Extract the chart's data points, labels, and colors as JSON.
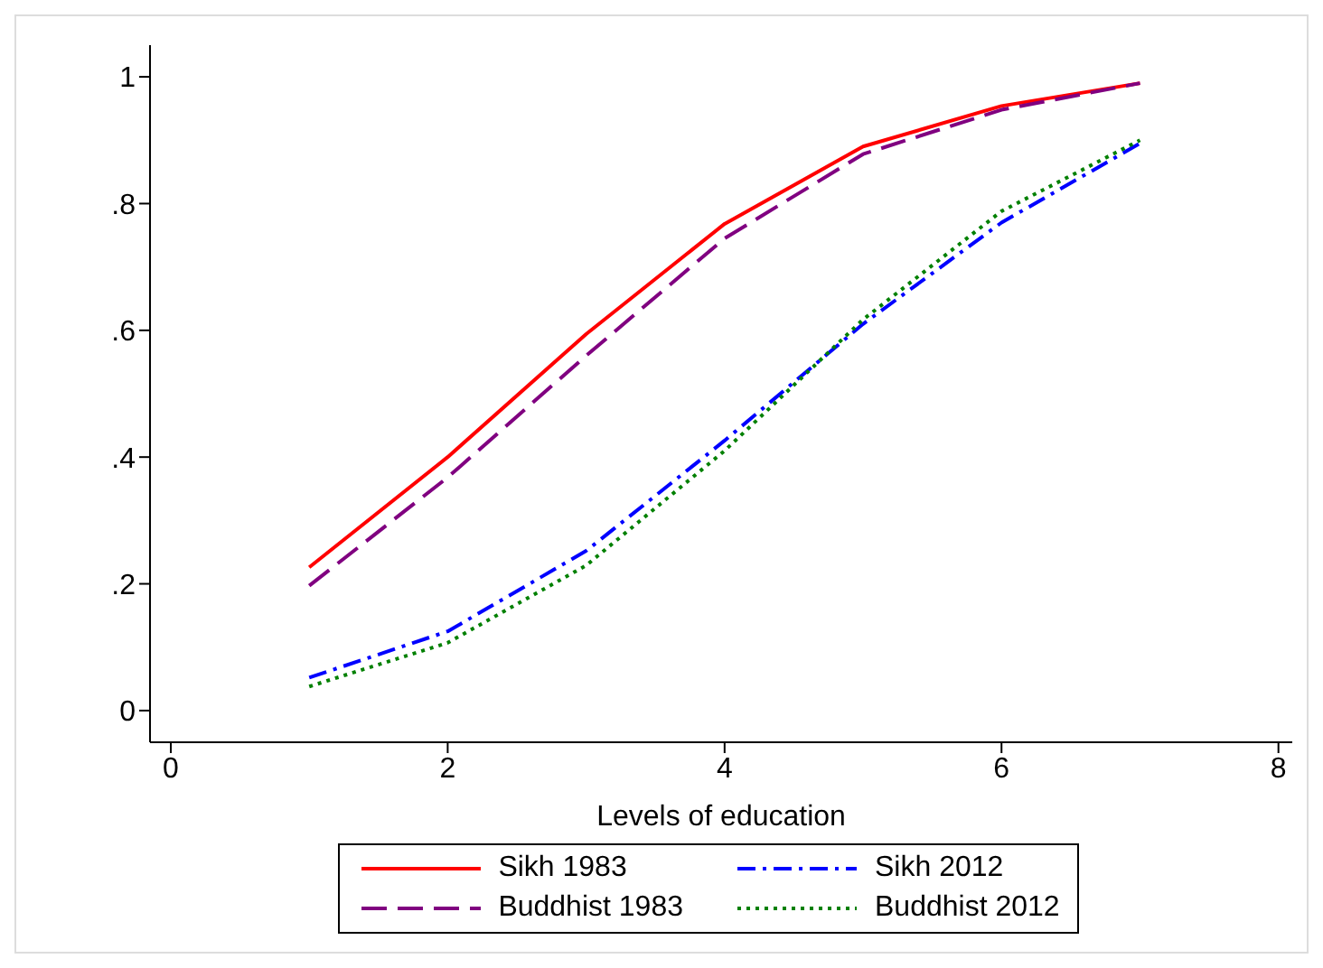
{
  "chart_data": {
    "type": "line",
    "xlabel": "Levels of education",
    "x": [
      1,
      2,
      3,
      4,
      5,
      6,
      7
    ],
    "series": [
      {
        "name": "Sikh 1983",
        "color": "#ff0000",
        "line_style": "solid",
        "values": [
          0.226,
          0.4,
          0.594,
          0.768,
          0.89,
          0.954,
          0.99
        ]
      },
      {
        "name": "Buddhist 1983",
        "color": "#800080",
        "line_style": "longdash",
        "values": [
          0.197,
          0.368,
          0.56,
          0.745,
          0.878,
          0.948,
          0.99
        ]
      },
      {
        "name": "Sikh 2012",
        "color": "#0000ff",
        "line_style": "dashdot",
        "values": [
          0.052,
          0.125,
          0.252,
          0.426,
          0.61,
          0.77,
          0.895
        ]
      },
      {
        "name": "Buddhist 2012",
        "color": "#008000",
        "line_style": "dotted",
        "values": [
          0.038,
          0.107,
          0.229,
          0.41,
          0.617,
          0.788,
          0.9
        ]
      }
    ],
    "xlim": [
      -0.15,
      8.1
    ],
    "xticks": [
      0,
      2,
      4,
      6,
      8
    ],
    "ylim": [
      -0.05,
      1.05
    ],
    "yticks": [
      0,
      {
        "value": 0.2,
        "label": ".2"
      },
      {
        "value": 0.4,
        "label": ".4"
      },
      {
        "value": 0.6,
        "label": ".6"
      },
      {
        "value": 0.8,
        "label": ".8"
      },
      1
    ],
    "grid": false,
    "legend": "bottom",
    "marker": "none"
  }
}
